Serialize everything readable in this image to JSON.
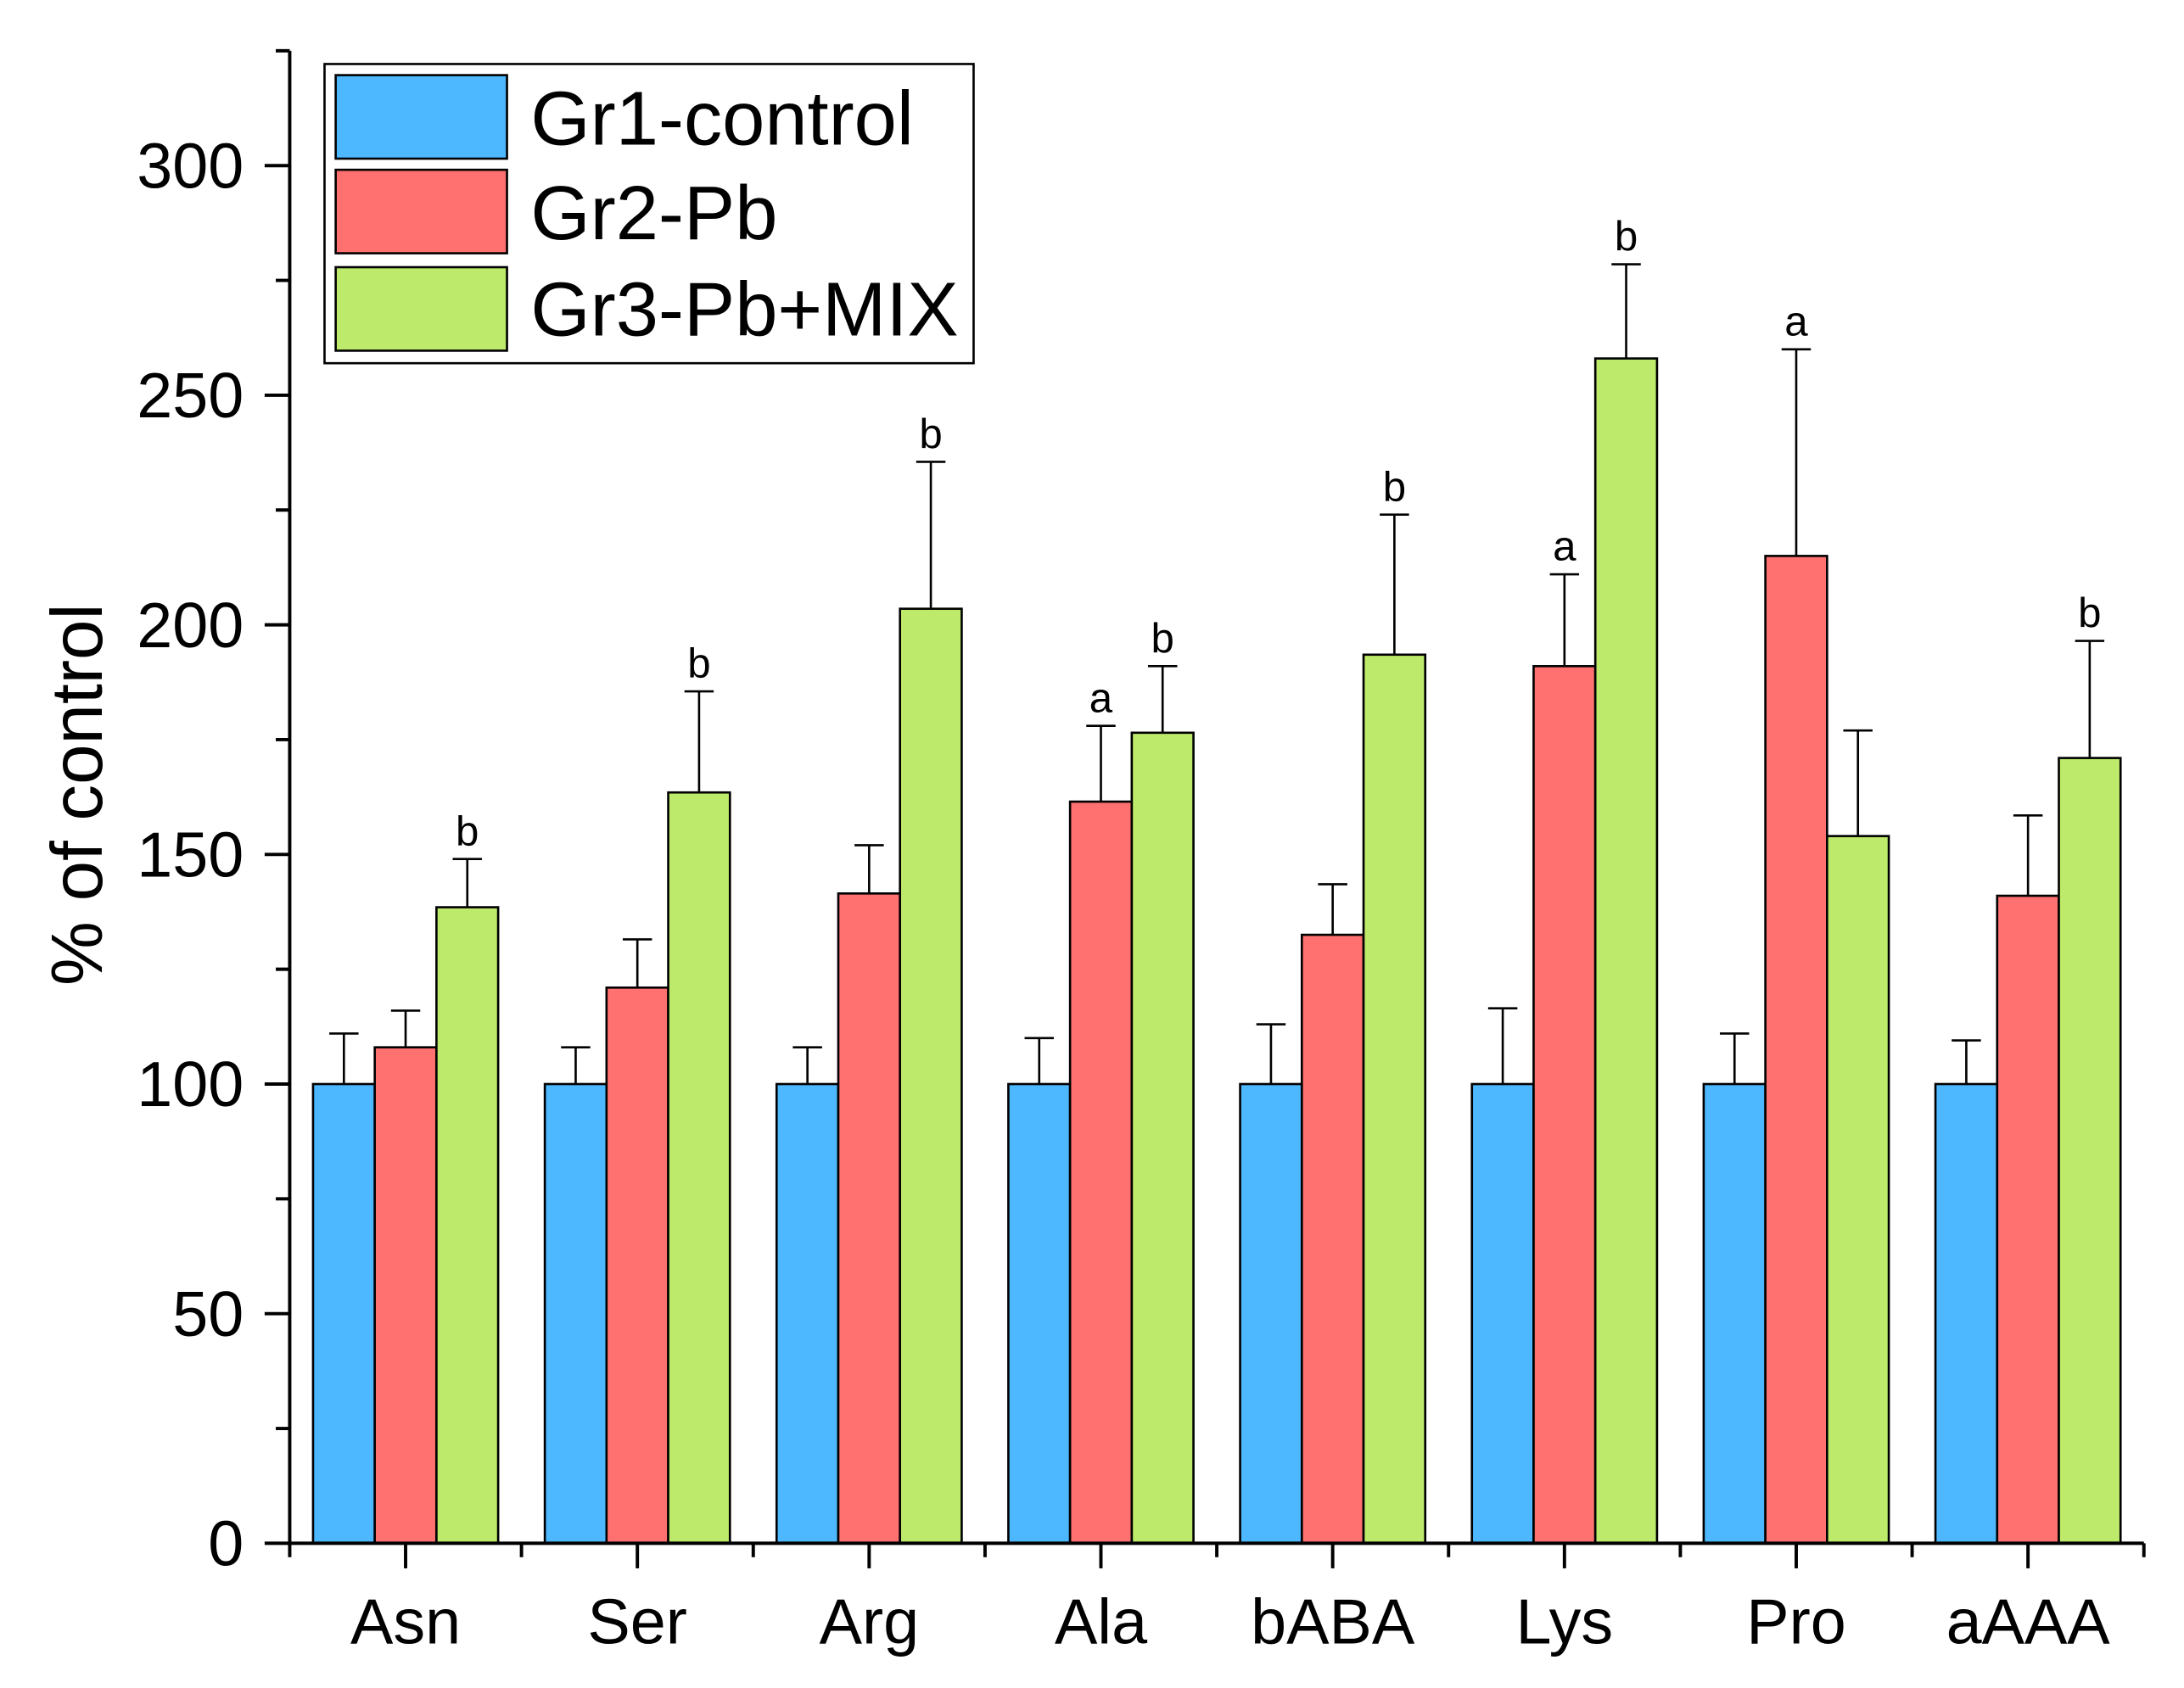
{
  "chart_data": {
    "type": "bar",
    "title": "",
    "xlabel": "",
    "ylabel": "% of control",
    "ylim": [
      0,
      325
    ],
    "yticks": [
      0,
      50,
      100,
      150,
      200,
      250,
      300
    ],
    "minor_ytick_step": 25,
    "grid": false,
    "legend": "top-left",
    "categories": [
      "Asn",
      "Ser",
      "Arg",
      "Ala",
      "bABA",
      "Lys",
      "Pro",
      "aAAA"
    ],
    "series": [
      {
        "name": "Gr1-control",
        "color": "#4DB8FF",
        "values": [
          100,
          100,
          100,
          100,
          100,
          100,
          100,
          100
        ],
        "errors": [
          11,
          8,
          8,
          10,
          13,
          16.5,
          11,
          9.5
        ],
        "labels": [
          "",
          "",
          "",
          "",
          "",
          "",
          "",
          ""
        ]
      },
      {
        "name": "Gr2-Pb",
        "color": "#FF7070",
        "values": [
          108,
          121,
          141.5,
          161.5,
          132.5,
          191,
          215,
          141
        ],
        "errors": [
          8,
          10.5,
          10.5,
          16.5,
          11,
          20,
          45,
          17.5
        ],
        "labels": [
          "",
          "",
          "",
          "a",
          "",
          "a",
          "a",
          ""
        ]
      },
      {
        "name": "Gr3-Pb+MIX",
        "color": "#BDEA6A",
        "values": [
          138.5,
          163.5,
          203.5,
          176.5,
          193.5,
          258,
          154,
          171
        ],
        "errors": [
          10.5,
          22,
          32,
          14.5,
          30.5,
          20.5,
          23,
          25.5
        ],
        "labels": [
          "b",
          "b",
          "b",
          "b",
          "b",
          "b",
          "",
          "b"
        ]
      }
    ]
  }
}
